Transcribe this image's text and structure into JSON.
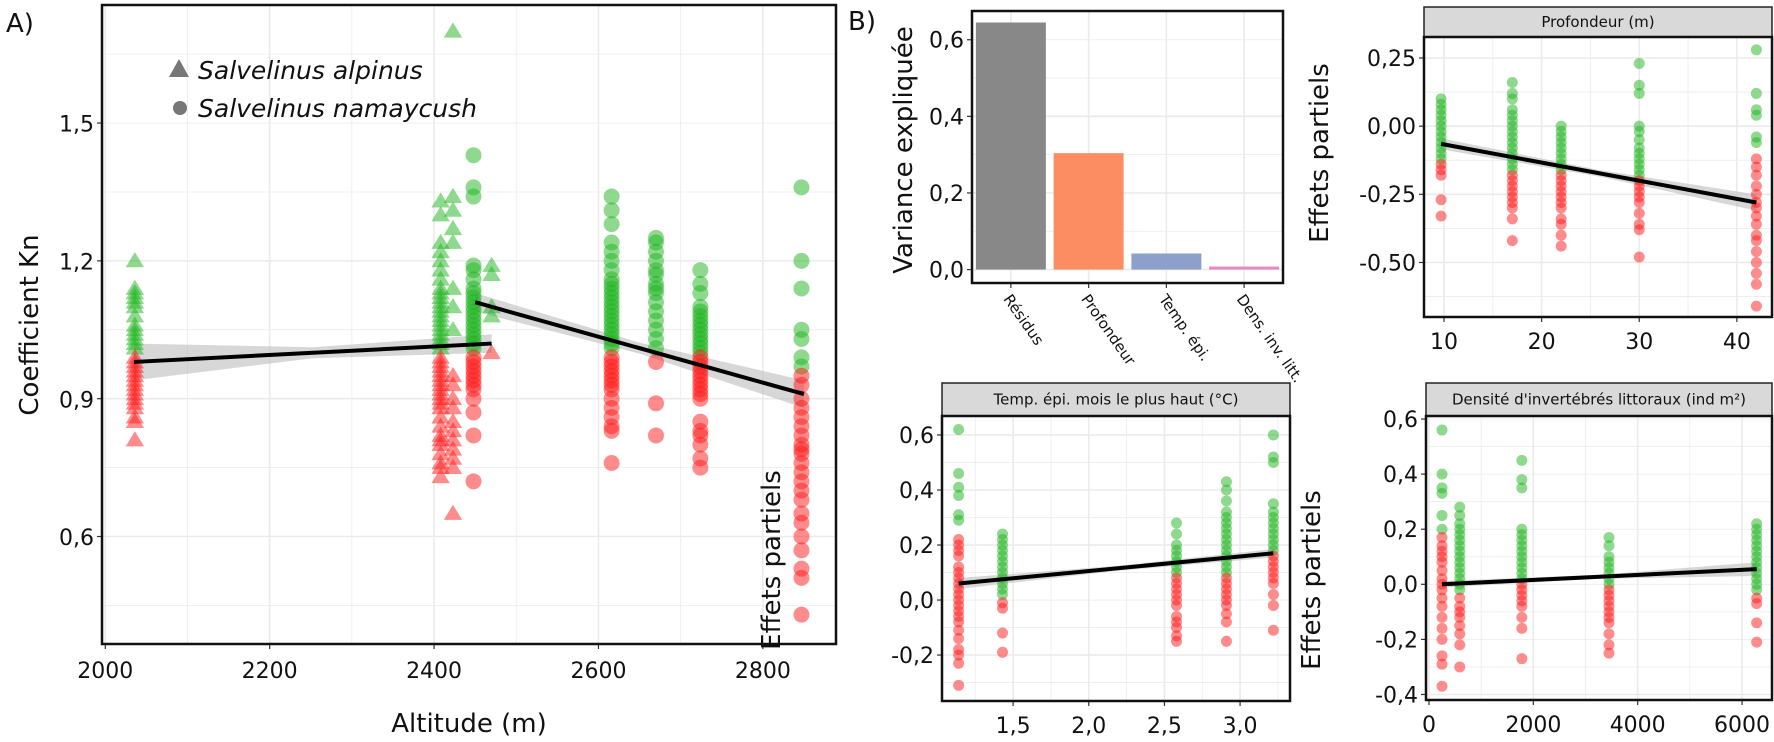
{
  "colors": {
    "above": "#1db41d",
    "below": "#ff1a1a",
    "line": "#000000",
    "ribbon": "#bdbdbd",
    "grid": "#ebebeb",
    "strip": "#d9d9d9"
  },
  "labels": {
    "panel_a": "A)",
    "panel_b": "B)"
  },
  "chart_data": [
    {
      "id": "altitude",
      "type": "scatter",
      "xlabel": "Altitude (m)",
      "ylabel": "Coefficient Kn",
      "xlim": [
        1996,
        2889
      ],
      "ylim": [
        0.366,
        1.757
      ],
      "xticks": [
        {
          "v": 2000,
          "label": "2000"
        },
        {
          "v": 2200,
          "label": "2200"
        },
        {
          "v": 2400,
          "label": "2400"
        },
        {
          "v": 2600,
          "label": "2600"
        },
        {
          "v": 2800,
          "label": "2800"
        }
      ],
      "yticks": [
        {
          "v": 0.6,
          "label": "0,6"
        },
        {
          "v": 0.9,
          "label": "0,9"
        },
        {
          "v": 1.2,
          "label": "1,2"
        },
        {
          "v": 1.5,
          "label": "1,5"
        }
      ],
      "grid": true,
      "legend": {
        "placement": "top-left",
        "entries": [
          {
            "label": "Salvelinus alpinus",
            "shape": "triangle"
          },
          {
            "label": "Salvelinus namaycush",
            "shape": "circle"
          }
        ]
      },
      "fits": [
        {
          "x": [
            2035,
            2470
          ],
          "y": [
            0.98,
            1.02
          ],
          "se": [
            0.04,
            0.02
          ]
        },
        {
          "x": [
            2450,
            2850
          ],
          "y": [
            1.11,
            0.91
          ],
          "se": [
            0.02,
            0.03
          ]
        }
      ],
      "columns": [
        {
          "x": 2036,
          "shape": "triangle",
          "above": [
            1.2,
            1.14,
            1.13,
            1.12,
            1.11,
            1.1,
            1.08,
            1.06,
            1.05,
            1.04,
            1.03,
            1.02,
            1.01
          ],
          "below": [
            0.99,
            0.98,
            0.97,
            0.96,
            0.95,
            0.94,
            0.93,
            0.92,
            0.91,
            0.9,
            0.89,
            0.88,
            0.86,
            0.85,
            0.81
          ]
        },
        {
          "x": 2408,
          "shape": "triangle",
          "above": [
            1.33,
            1.3,
            1.24,
            1.22,
            1.2,
            1.18,
            1.16,
            1.14,
            1.13,
            1.12,
            1.11,
            1.1,
            1.09,
            1.08,
            1.07,
            1.06,
            1.05,
            1.04,
            1.03,
            1.02,
            1.01
          ],
          "below": [
            0.99,
            0.98,
            0.97,
            0.96,
            0.95,
            0.94,
            0.93,
            0.92,
            0.91,
            0.9,
            0.89,
            0.88,
            0.86,
            0.84,
            0.82,
            0.81,
            0.8,
            0.78,
            0.76,
            0.75,
            0.73
          ]
        },
        {
          "x": 2423,
          "shape": "triangle",
          "above": [
            1.7,
            1.34,
            1.31,
            1.27,
            1.24,
            1.14,
            1.1,
            1.05
          ],
          "below": [
            0.95,
            0.93,
            0.9,
            0.88,
            0.85,
            0.83,
            0.81,
            0.79,
            0.77,
            0.75,
            0.65
          ]
        },
        {
          "x": 2448,
          "shape": "circle",
          "above": [
            1.43,
            1.36,
            1.34,
            1.19,
            1.18,
            1.16,
            1.14,
            1.13,
            1.12,
            1.11,
            1.1,
            1.09,
            1.08,
            1.07,
            1.06,
            1.05,
            1.04,
            1.03,
            1.02,
            1.01
          ],
          "below": [
            0.99,
            0.98,
            0.97,
            0.96,
            0.95,
            0.94,
            0.93,
            0.92,
            0.9,
            0.87,
            0.82,
            0.72
          ]
        },
        {
          "x": 2470,
          "shape": "triangle",
          "above": [
            1.19,
            1.17,
            1.1,
            1.08
          ],
          "below": [
            1.0
          ]
        },
        {
          "x": 2616,
          "shape": "circle",
          "above": [
            1.34,
            1.31,
            1.28,
            1.24,
            1.22,
            1.2,
            1.18,
            1.16,
            1.15,
            1.14,
            1.13,
            1.12,
            1.11,
            1.1,
            1.09,
            1.08,
            1.07,
            1.06,
            1.05,
            1.04,
            1.03,
            1.02,
            1.01
          ],
          "below": [
            0.99,
            0.98,
            0.97,
            0.96,
            0.95,
            0.94,
            0.93,
            0.92,
            0.9,
            0.88,
            0.86,
            0.84,
            0.83,
            0.76
          ]
        },
        {
          "x": 2670,
          "shape": "circle",
          "above": [
            1.25,
            1.24,
            1.22,
            1.2,
            1.18,
            1.17,
            1.15,
            1.14,
            1.13,
            1.11,
            1.09,
            1.07,
            1.05,
            1.03,
            1.01
          ],
          "below": [
            0.98,
            0.89,
            0.82
          ]
        },
        {
          "x": 2724,
          "shape": "circle",
          "above": [
            1.18,
            1.15,
            1.13,
            1.1,
            1.09,
            1.08,
            1.07,
            1.06,
            1.05,
            1.04,
            1.03,
            1.02,
            1.01,
            1.0
          ],
          "below": [
            0.99,
            0.98,
            0.97,
            0.96,
            0.95,
            0.94,
            0.93,
            0.92,
            0.91,
            0.9,
            0.85,
            0.83,
            0.82,
            0.8,
            0.77,
            0.75
          ]
        },
        {
          "x": 2847,
          "shape": "circle",
          "above": [
            1.36,
            1.2,
            1.14,
            1.05,
            1.03,
            0.99,
            0.97
          ],
          "below": [
            0.95,
            0.93,
            0.9,
            0.88,
            0.86,
            0.84,
            0.82,
            0.8,
            0.79,
            0.78,
            0.76,
            0.74,
            0.72,
            0.7,
            0.68,
            0.65,
            0.63,
            0.6,
            0.57,
            0.53,
            0.51,
            0.43
          ]
        }
      ]
    },
    {
      "id": "variance",
      "type": "bar",
      "ylabel": "Variance expliquée",
      "categories": [
        "Résidus",
        "Profondeur",
        "Temp. épi.",
        "Dens. inv. litt."
      ],
      "values": [
        0.645,
        0.304,
        0.042,
        0.008
      ],
      "bar_colors": [
        "#888888",
        "#fc8d62",
        "#8da0cb",
        "#e78ac3"
      ],
      "ylim": [
        -0.035,
        0.675
      ],
      "yticks": [
        {
          "v": 0.0,
          "label": "0,0"
        },
        {
          "v": 0.2,
          "label": "0,2"
        },
        {
          "v": 0.4,
          "label": "0,4"
        },
        {
          "v": 0.6,
          "label": "0,6"
        }
      ],
      "grid": true
    },
    {
      "id": "profondeur",
      "type": "scatter",
      "title": "Profondeur (m)",
      "ylabel": "Effets partiels",
      "xlim": [
        7.95,
        43.6
      ],
      "ylim": [
        -0.7,
        0.327
      ],
      "xticks": [
        {
          "v": 10,
          "label": "10"
        },
        {
          "v": 20,
          "label": "20"
        },
        {
          "v": 30,
          "label": "30"
        },
        {
          "v": 40,
          "label": "40"
        }
      ],
      "yticks": [
        {
          "v": -0.5,
          "label": "-0,50"
        },
        {
          "v": -0.25,
          "label": "-0,25"
        },
        {
          "v": 0,
          "label": "0,00"
        },
        {
          "v": 0.25,
          "label": "0,25"
        }
      ],
      "grid": true,
      "fits": [
        {
          "x": [
            9.7,
            42
          ],
          "y": [
            -0.065,
            -0.28
          ],
          "se": [
            0.02,
            0.03
          ]
        }
      ],
      "columns": [
        {
          "x": 9.7,
          "shape": "circle",
          "above": [
            0.1,
            0.08,
            0.06,
            0.04,
            0.02,
            0.0,
            -0.02,
            -0.04,
            -0.06,
            -0.08,
            -0.1,
            -0.12
          ],
          "below": [
            -0.14,
            -0.16,
            -0.18,
            -0.27,
            -0.33
          ]
        },
        {
          "x": 17,
          "shape": "circle",
          "above": [
            0.16,
            0.12,
            0.1,
            0.06,
            0.04,
            0.02,
            0.0,
            -0.02,
            -0.04,
            -0.06,
            -0.08,
            -0.1,
            -0.12,
            -0.14,
            -0.16
          ],
          "below": [
            -0.18,
            -0.2,
            -0.22,
            -0.24,
            -0.26,
            -0.28,
            -0.3,
            -0.34,
            -0.42
          ]
        },
        {
          "x": 22,
          "shape": "circle",
          "above": [
            0.0,
            -0.02,
            -0.04,
            -0.06,
            -0.08,
            -0.1,
            -0.12,
            -0.14,
            -0.16
          ],
          "below": [
            -0.18,
            -0.2,
            -0.22,
            -0.24,
            -0.26,
            -0.28,
            -0.3,
            -0.34,
            -0.36,
            -0.4,
            -0.44
          ]
        },
        {
          "x": 30,
          "shape": "circle",
          "above": [
            0.23,
            0.15,
            0.12,
            0.0,
            -0.02,
            -0.05,
            -0.08,
            -0.1,
            -0.12,
            -0.14,
            -0.16,
            -0.18
          ],
          "below": [
            -0.2,
            -0.22,
            -0.24,
            -0.26,
            -0.28,
            -0.32,
            -0.36,
            -0.38,
            -0.48
          ]
        },
        {
          "x": 42,
          "shape": "circle",
          "above": [
            0.28,
            0.12,
            0.06,
            0.04,
            -0.04,
            -0.06
          ],
          "below": [
            -0.12,
            -0.15,
            -0.18,
            -0.22,
            -0.25,
            -0.28,
            -0.3,
            -0.33,
            -0.36,
            -0.4,
            -0.42,
            -0.46,
            -0.5,
            -0.54,
            -0.58,
            -0.66
          ]
        }
      ]
    },
    {
      "id": "temperature",
      "type": "scatter",
      "title": "Temp. épi. mois le plus haut (°C)",
      "ylabel": "Effets partiels",
      "xlim": [
        1.03,
        3.33
      ],
      "ylim": [
        -0.367,
        0.669
      ],
      "xticks": [
        {
          "v": 1.5,
          "label": "1,5"
        },
        {
          "v": 2.0,
          "label": "2,0"
        },
        {
          "v": 2.5,
          "label": "2,5"
        },
        {
          "v": 3.0,
          "label": "3,0"
        }
      ],
      "yticks": [
        {
          "v": -0.2,
          "label": "-0,2"
        },
        {
          "v": 0.0,
          "label": "0,0"
        },
        {
          "v": 0.2,
          "label": "0,2"
        },
        {
          "v": 0.4,
          "label": "0,4"
        },
        {
          "v": 0.6,
          "label": "0,6"
        }
      ],
      "grid": true,
      "fits": [
        {
          "x": [
            1.14,
            3.22
          ],
          "y": [
            0.06,
            0.17
          ],
          "se": [
            0.02,
            0.015
          ]
        }
      ],
      "columns": [
        {
          "x": 1.14,
          "shape": "circle",
          "above": [
            0.62,
            0.46,
            0.41,
            0.38,
            0.31,
            0.29
          ],
          "below": [
            0.22,
            0.2,
            0.18,
            0.16,
            0.12,
            0.1,
            0.08,
            0.06,
            0.04,
            0.02,
            0.0,
            -0.02,
            -0.04,
            -0.06,
            -0.08,
            -0.11,
            -0.14,
            -0.18,
            -0.2,
            -0.23,
            -0.31
          ]
        },
        {
          "x": 1.43,
          "shape": "circle",
          "above": [
            0.24,
            0.22,
            0.2,
            0.18,
            0.16,
            0.14,
            0.12,
            0.1,
            0.08,
            0.06,
            0.04,
            0.02
          ],
          "below": [
            -0.01,
            -0.03,
            -0.12,
            -0.19
          ]
        },
        {
          "x": 2.58,
          "shape": "circle",
          "above": [
            0.28,
            0.24,
            0.2,
            0.18,
            0.16,
            0.14,
            0.12,
            0.1
          ],
          "below": [
            0.08,
            0.06,
            0.04,
            0.02,
            0.0,
            -0.02,
            -0.06,
            -0.08,
            -0.1,
            -0.13,
            -0.15
          ]
        },
        {
          "x": 2.91,
          "shape": "circle",
          "above": [
            0.43,
            0.4,
            0.36,
            0.32,
            0.3,
            0.28,
            0.26,
            0.24,
            0.22,
            0.2,
            0.18,
            0.16,
            0.14,
            0.12,
            0.1
          ],
          "below": [
            0.08,
            0.06,
            0.04,
            0.02,
            0.0,
            -0.02,
            -0.05,
            -0.08,
            -0.15
          ]
        },
        {
          "x": 3.22,
          "shape": "circle",
          "above": [
            0.6,
            0.52,
            0.5,
            0.35,
            0.32,
            0.3,
            0.28,
            0.26,
            0.24,
            0.22,
            0.2,
            0.18
          ],
          "below": [
            0.16,
            0.14,
            0.12,
            0.1,
            0.08,
            0.06,
            0.02,
            -0.02,
            -0.11
          ]
        }
      ]
    },
    {
      "id": "densite",
      "type": "scatter",
      "title": "Densité d'invertébrés littoraux (ind m²)",
      "ylabel": "Effets partiels",
      "xlim": [
        -57,
        6574
      ],
      "ylim": [
        -0.42,
        0.611
      ],
      "xticks": [
        {
          "v": 0,
          "label": "0"
        },
        {
          "v": 2000,
          "label": "2000"
        },
        {
          "v": 4000,
          "label": "4000"
        },
        {
          "v": 6000,
          "label": "6000"
        }
      ],
      "yticks": [
        {
          "v": -0.4,
          "label": "-0,4"
        },
        {
          "v": -0.2,
          "label": "-0,2"
        },
        {
          "v": 0.0,
          "label": "0,0"
        },
        {
          "v": 0.2,
          "label": "0,2"
        },
        {
          "v": 0.4,
          "label": "0,4"
        },
        {
          "v": 0.6,
          "label": "0,6"
        }
      ],
      "grid": true,
      "fits": [
        {
          "x": [
            250,
            6280
          ],
          "y": [
            0.0,
            0.055
          ],
          "se": [
            0.012,
            0.025
          ]
        }
      ],
      "columns": [
        {
          "x": 250,
          "shape": "circle",
          "above": [
            0.56,
            0.4,
            0.35,
            0.33,
            0.25,
            0.2
          ],
          "below": [
            0.17,
            0.14,
            0.12,
            0.1,
            0.08,
            0.05,
            0.02,
            0.0,
            -0.02,
            -0.05,
            -0.08,
            -0.12,
            -0.16,
            -0.2,
            -0.26,
            -0.29,
            -0.37
          ]
        },
        {
          "x": 590,
          "shape": "circle",
          "above": [
            0.28,
            0.25,
            0.22,
            0.2,
            0.18,
            0.16,
            0.14,
            0.12,
            0.1,
            0.08,
            0.06,
            0.04,
            0.02,
            0.0,
            -0.02
          ],
          "below": [
            -0.05,
            -0.08,
            -0.1,
            -0.12,
            -0.15,
            -0.18,
            -0.22,
            -0.3
          ]
        },
        {
          "x": 1780,
          "shape": "circle",
          "above": [
            0.45,
            0.38,
            0.35,
            0.2,
            0.18,
            0.16,
            0.14,
            0.12,
            0.1,
            0.08,
            0.06,
            0.04,
            0.02
          ],
          "below": [
            0.0,
            -0.02,
            -0.04,
            -0.06,
            -0.08,
            -0.12,
            -0.16,
            -0.27
          ]
        },
        {
          "x": 3450,
          "shape": "circle",
          "above": [
            0.17,
            0.14,
            0.1,
            0.08,
            0.06,
            0.04,
            0.02,
            0.0
          ],
          "below": [
            -0.02,
            -0.04,
            -0.06,
            -0.08,
            -0.1,
            -0.12,
            -0.14,
            -0.18,
            -0.22,
            -0.25
          ]
        },
        {
          "x": 6280,
          "shape": "circle",
          "above": [
            0.22,
            0.2,
            0.18,
            0.16,
            0.14,
            0.12,
            0.1,
            0.08,
            0.06,
            0.04,
            0.02,
            0.0,
            -0.02
          ],
          "below": [
            -0.05,
            -0.07,
            -0.14,
            -0.21
          ]
        }
      ]
    }
  ]
}
